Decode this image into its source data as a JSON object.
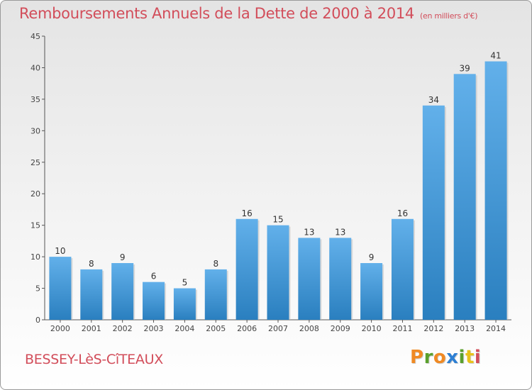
{
  "header": {
    "title": "Remboursements Annuels de la Dette de 2000 à 2014",
    "unit": "(en milliers d'€)"
  },
  "footer": {
    "commune": "BESSEY-LèS-CîTEAUX",
    "logo": "Proxiti"
  },
  "colors": {
    "title": "#d24d5a",
    "bar_top": "#62b0ea",
    "bar_bottom": "#2a7fbf",
    "logo_letters": [
      "#f08a24",
      "#5aa02c",
      "#f08a24",
      "#2d7fd3",
      "#5aa02c",
      "#e8c21a",
      "#d24d5a"
    ]
  },
  "chart_data": {
    "type": "bar",
    "title": "Remboursements Annuels de la Dette de 2000 à 2014",
    "xlabel": "",
    "ylabel": "",
    "categories": [
      "2000",
      "2001",
      "2002",
      "2003",
      "2004",
      "2005",
      "2006",
      "2007",
      "2008",
      "2009",
      "2010",
      "2011",
      "2012",
      "2013",
      "2014"
    ],
    "values": [
      10,
      8,
      9,
      6,
      5,
      8,
      16,
      15,
      13,
      13,
      9,
      16,
      34,
      39,
      41
    ],
    "ylim": [
      0,
      45
    ],
    "yticks": [
      0,
      5,
      10,
      15,
      20,
      25,
      30,
      35,
      40,
      45
    ],
    "grid": false,
    "legend": "none"
  }
}
